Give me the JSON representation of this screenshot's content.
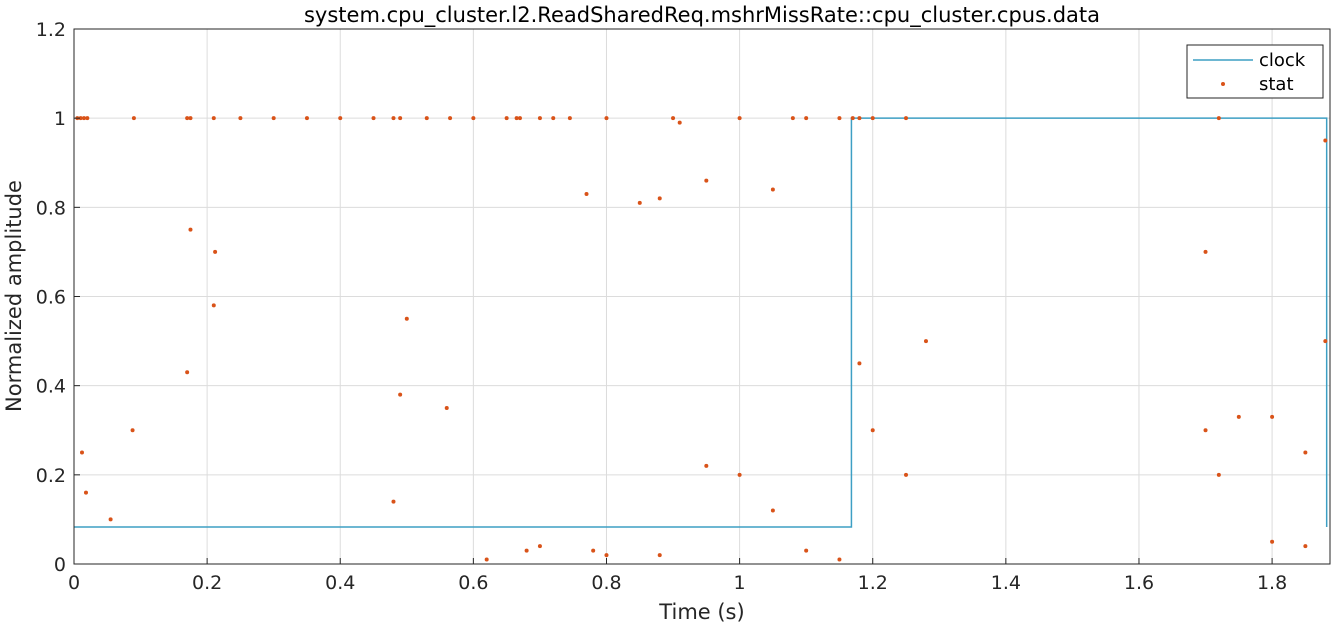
{
  "chart_data": {
    "type": "scatter",
    "title": "system.cpu_cluster.l2.ReadSharedReq.mshrMissRate::cpu_cluster.cpus.data",
    "xlabel": "Time (s)",
    "ylabel": "Normalized amplitude",
    "xlim": [
      0,
      1.887
    ],
    "ylim": [
      0,
      1.2
    ],
    "xticks": [
      0,
      0.2,
      0.4,
      0.6,
      0.8,
      1,
      1.2,
      1.4,
      1.6,
      1.8
    ],
    "xtick_labels": [
      "0",
      "0.2",
      "0.4",
      "0.6",
      "0.8",
      "1",
      "1.2",
      "1.4",
      "1.6",
      "1.8"
    ],
    "yticks": [
      0,
      0.2,
      0.4,
      0.6,
      0.8,
      1,
      1.2
    ],
    "ytick_labels": [
      "0",
      "0.2",
      "0.4",
      "0.6",
      "0.8",
      "1",
      "1.2"
    ],
    "grid": true,
    "legend": {
      "placement": "top-right",
      "entries": [
        "clock",
        "stat"
      ]
    },
    "colors": {
      "clock": "#0072BD",
      "clock_line": "#3d9fc4",
      "stat": "#D95319"
    },
    "series": [
      {
        "name": "clock",
        "kind": "step-line",
        "x": [
          0,
          1.168,
          1.168,
          1.882,
          1.882
        ],
        "y": [
          0.083,
          0.083,
          1.0,
          1.0,
          0.083
        ]
      },
      {
        "name": "stat",
        "kind": "markers",
        "x": [
          0.005,
          0.01,
          0.015,
          0.02,
          0.09,
          0.17,
          0.175,
          0.21,
          0.25,
          0.3,
          0.35,
          0.4,
          0.45,
          0.48,
          0.49,
          0.53,
          0.565,
          0.6,
          0.65,
          0.665,
          0.67,
          0.7,
          0.72,
          0.745,
          0.77,
          0.8,
          0.85,
          0.88,
          0.9,
          0.91,
          0.95,
          1.0,
          1.05,
          1.08,
          1.1,
          1.15,
          1.17,
          1.18,
          1.2,
          1.25,
          1.28,
          1.7,
          1.72,
          1.75,
          1.8,
          1.85,
          1.88,
          0.012,
          0.018,
          0.055,
          0.088,
          0.17,
          0.175,
          0.21,
          0.212,
          0.48,
          0.49,
          0.5,
          0.56,
          0.62,
          0.68,
          0.7,
          0.78,
          0.8,
          0.88,
          0.95,
          1.0,
          1.05,
          1.1,
          1.15,
          1.18,
          1.2,
          1.25,
          1.7,
          1.72,
          1.8,
          1.85,
          1.88
        ],
        "y": [
          1.0,
          1.0,
          1.0,
          1.0,
          1.0,
          1.0,
          1.0,
          1.0,
          1.0,
          1.0,
          1.0,
          1.0,
          1.0,
          1.0,
          1.0,
          1.0,
          1.0,
          1.0,
          1.0,
          1.0,
          1.0,
          1.0,
          1.0,
          1.0,
          0.83,
          1.0,
          0.81,
          0.82,
          1.0,
          0.99,
          0.86,
          1.0,
          0.84,
          1.0,
          1.0,
          1.0,
          1.0,
          1.0,
          1.0,
          1.0,
          0.5,
          0.7,
          1.0,
          0.33,
          0.33,
          0.25,
          0.95,
          0.25,
          0.16,
          0.1,
          0.3,
          0.43,
          0.75,
          0.58,
          0.7,
          0.14,
          0.38,
          0.55,
          0.35,
          0.01,
          0.03,
          0.04,
          0.03,
          0.02,
          0.02,
          0.22,
          0.2,
          0.12,
          0.03,
          0.01,
          0.45,
          0.3,
          0.2,
          0.3,
          0.2,
          0.05,
          0.04,
          0.5
        ]
      }
    ]
  }
}
